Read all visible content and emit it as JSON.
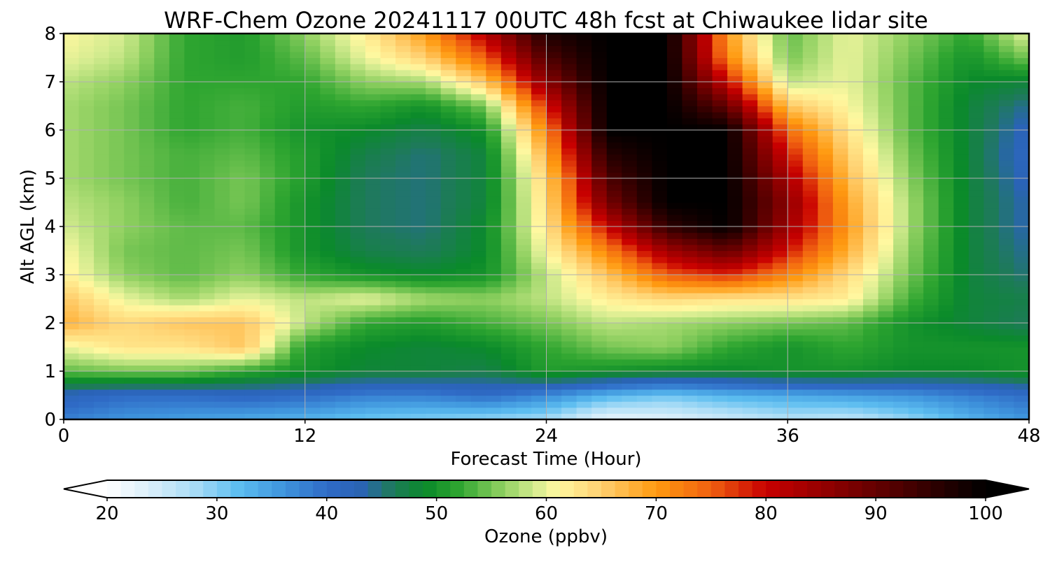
{
  "chart_data": {
    "type": "heatmap",
    "title": "WRF-Chem Ozone  20241117 00UTC 48h fcst at Chiwaukee lidar site",
    "xlabel": "Forecast Time (Hour)",
    "ylabel": "Alt AGL (km)",
    "xlim": [
      0,
      48
    ],
    "ylim": [
      0,
      8
    ],
    "xticks": [
      0,
      12,
      24,
      36,
      48
    ],
    "yticks": [
      0,
      1,
      2,
      3,
      4,
      5,
      6,
      7,
      8
    ],
    "grid": true,
    "x_hours": [
      0,
      3,
      6,
      9,
      12,
      15,
      18,
      21,
      24,
      27,
      30,
      33,
      36,
      39,
      42,
      45,
      48
    ],
    "z_km": [
      0,
      0.5,
      1,
      1.5,
      2,
      2.5,
      3,
      3.5,
      4,
      4.5,
      5,
      5.5,
      6,
      6.5,
      7,
      7.5,
      8
    ],
    "ozone_ppbv": [
      [
        38,
        36,
        35,
        34,
        33,
        31,
        30,
        29,
        28,
        22,
        23,
        25,
        27,
        26,
        29,
        33,
        36
      ],
      [
        42,
        40,
        40,
        41,
        40,
        38,
        38,
        40,
        37,
        33,
        31,
        33,
        34,
        35,
        36,
        38,
        40
      ],
      [
        54,
        55,
        55,
        52,
        50,
        48,
        48,
        47,
        51,
        50,
        49,
        49,
        50,
        50,
        49,
        49,
        50
      ],
      [
        60,
        63,
        63,
        66,
        51,
        49,
        48,
        49,
        52,
        55,
        56,
        52,
        50,
        52,
        50,
        50,
        50
      ],
      [
        68,
        64,
        66,
        66,
        58,
        52,
        51,
        53,
        55,
        58,
        57,
        56,
        55,
        54,
        50,
        48,
        46
      ],
      [
        66,
        60,
        57,
        60,
        58,
        60,
        57,
        56,
        58,
        62,
        64,
        63,
        63,
        62,
        53,
        48,
        47
      ],
      [
        62,
        56,
        54,
        56,
        52,
        50,
        49,
        50,
        58,
        66,
        75,
        78,
        72,
        64,
        55,
        48,
        45
      ],
      [
        61,
        55,
        54,
        55,
        50,
        47,
        46,
        49,
        61,
        72,
        84,
        90,
        79,
        68,
        56,
        48,
        44
      ],
      [
        59,
        56,
        54,
        54,
        50,
        46,
        45,
        49,
        63,
        80,
        95,
        100,
        84,
        70,
        57,
        48,
        43
      ],
      [
        58,
        56,
        53,
        55,
        50,
        46,
        45,
        48,
        64,
        88,
        100,
        100,
        86,
        69,
        57,
        48,
        43
      ],
      [
        57,
        55,
        53,
        55,
        51,
        46,
        45,
        48,
        65,
        92,
        100,
        100,
        83,
        67,
        56,
        48,
        42
      ],
      [
        57,
        55,
        53,
        54,
        51,
        47,
        45,
        48,
        68,
        96,
        100,
        100,
        79,
        65,
        55,
        48,
        41
      ],
      [
        57,
        55,
        52,
        53,
        50,
        49,
        47,
        50,
        72,
        100,
        100,
        100,
        74,
        63,
        54,
        48,
        42
      ],
      [
        57,
        55,
        52,
        53,
        51,
        52,
        50,
        55,
        78,
        100,
        100,
        90,
        66,
        61,
        54,
        48,
        44
      ],
      [
        58,
        56,
        52,
        52,
        52,
        56,
        57,
        66,
        86,
        100,
        100,
        80,
        58,
        60,
        54,
        49,
        48
      ],
      [
        60,
        58,
        52,
        51,
        54,
        60,
        65,
        75,
        92,
        100,
        100,
        72,
        55,
        60,
        55,
        50,
        55
      ],
      [
        61,
        59,
        52,
        51,
        56,
        62,
        70,
        82,
        97,
        100,
        100,
        70,
        54,
        60,
        56,
        52,
        60
      ]
    ],
    "colorbar": {
      "label": "Ozone  (ppbv)",
      "min": 20,
      "max": 100,
      "ticks": [
        20,
        30,
        40,
        50,
        60,
        70,
        80,
        90,
        100
      ],
      "extend": "both",
      "stops": [
        {
          "v": 20,
          "c": "#ffffff"
        },
        {
          "v": 24,
          "c": "#d8eefa"
        },
        {
          "v": 28,
          "c": "#a8dcf6"
        },
        {
          "v": 32,
          "c": "#5cbdf0"
        },
        {
          "v": 36,
          "c": "#3f95dd"
        },
        {
          "v": 40,
          "c": "#2f6bc6"
        },
        {
          "v": 43,
          "c": "#2a63b6"
        },
        {
          "v": 46,
          "c": "#1e7a5a"
        },
        {
          "v": 49,
          "c": "#0a8a2a"
        },
        {
          "v": 52,
          "c": "#2ea530"
        },
        {
          "v": 56,
          "c": "#8fd060"
        },
        {
          "v": 59,
          "c": "#d5ec90"
        },
        {
          "v": 61,
          "c": "#fff8a0"
        },
        {
          "v": 65,
          "c": "#ffd070"
        },
        {
          "v": 70,
          "c": "#ff9a10"
        },
        {
          "v": 75,
          "c": "#f06010"
        },
        {
          "v": 80,
          "c": "#c80000"
        },
        {
          "v": 85,
          "c": "#960000"
        },
        {
          "v": 90,
          "c": "#640000"
        },
        {
          "v": 95,
          "c": "#300000"
        },
        {
          "v": 100,
          "c": "#000000"
        }
      ]
    }
  }
}
